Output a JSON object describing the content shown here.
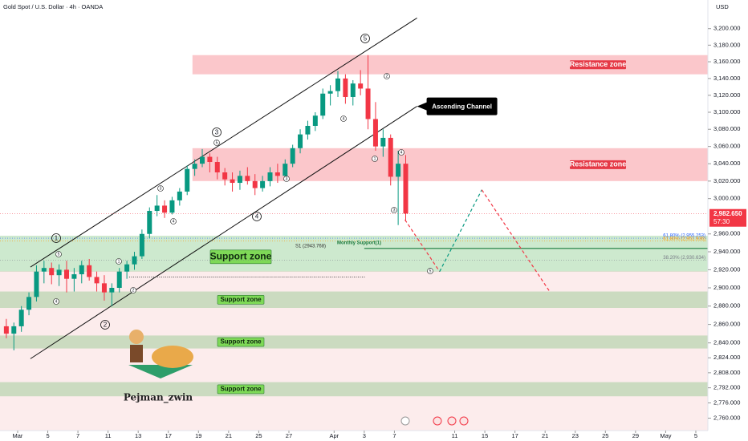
{
  "chart_data": {
    "type": "candlestick",
    "title": "Gold Spot / U.S. Dollar · 4h · OANDA",
    "currency": "USD",
    "log_scale": true,
    "xlim": [
      -1.17,
      45.8
    ],
    "ylim": [
      2747,
      3235
    ],
    "xticks": [
      {
        "value": 0,
        "label": "Mar"
      },
      {
        "value": 2,
        "label": "5"
      },
      {
        "value": 4,
        "label": "7"
      },
      {
        "value": 6,
        "label": "11"
      },
      {
        "value": 8,
        "label": "13"
      },
      {
        "value": 10,
        "label": "17"
      },
      {
        "value": 12,
        "label": "19"
      },
      {
        "value": 14,
        "label": "21"
      },
      {
        "value": 16,
        "label": "25"
      },
      {
        "value": 18,
        "label": "27"
      },
      {
        "value": 21,
        "label": "Apr"
      },
      {
        "value": 23,
        "label": "3"
      },
      {
        "value": 25,
        "label": "7"
      },
      {
        "value": 29,
        "label": "11"
      },
      {
        "value": 31,
        "label": "15"
      },
      {
        "value": 33,
        "label": "17"
      },
      {
        "value": 35,
        "label": "21"
      },
      {
        "value": 37,
        "label": "23"
      },
      {
        "value": 39,
        "label": "25"
      },
      {
        "value": 41,
        "label": "29"
      },
      {
        "value": 43,
        "label": "May"
      },
      {
        "value": 45,
        "label": "5"
      }
    ],
    "yticks": [
      {
        "value": 3200,
        "label": "3,200.000"
      },
      {
        "value": 3180,
        "label": "3,180.000"
      },
      {
        "value": 3160,
        "label": "3,160.000"
      },
      {
        "value": 3140,
        "label": "3,140.000"
      },
      {
        "value": 3120,
        "label": "3,120.000"
      },
      {
        "value": 3100,
        "label": "3,100.000"
      },
      {
        "value": 3080,
        "label": "3,080.000"
      },
      {
        "value": 3060,
        "label": "3,060.000"
      },
      {
        "value": 3040,
        "label": "3,040.000"
      },
      {
        "value": 3020,
        "label": "3,020.000"
      },
      {
        "value": 3000,
        "label": "3,000.000"
      },
      {
        "value": 2960,
        "label": "2,960.000"
      },
      {
        "value": 2940,
        "label": "2,940.000"
      },
      {
        "value": 2920,
        "label": "2,920.000"
      },
      {
        "value": 2900,
        "label": "2,900.000"
      },
      {
        "value": 2880,
        "label": "2,880.000"
      },
      {
        "value": 2860,
        "label": "2,860.000"
      },
      {
        "value": 2840,
        "label": "2,840.000"
      },
      {
        "value": 2824,
        "label": "2,824.000"
      },
      {
        "value": 2808,
        "label": "2,808.000"
      },
      {
        "value": 2792,
        "label": "2,792.000"
      },
      {
        "value": 2776,
        "label": "2,776.000"
      },
      {
        "value": 2760,
        "label": "2,760.000"
      }
    ],
    "up_color": "#089981",
    "down_color": "#f23645",
    "candles": {
      "x": [
        -0.75,
        -0.25,
        0.25,
        0.75,
        1.25,
        1.75,
        2.25,
        2.75,
        3.25,
        3.75,
        4.25,
        4.75,
        5.25,
        5.75,
        6.25,
        6.75,
        7.25,
        7.75,
        8.25,
        8.75,
        9.25,
        9.75,
        10.25,
        10.75,
        11.25,
        11.75,
        12.25,
        12.75,
        13.25,
        13.75,
        14.25,
        14.75,
        15.25,
        15.75,
        16.25,
        16.75,
        17.25,
        17.75,
        18.25,
        18.75,
        19.25,
        19.75,
        20.25,
        20.75,
        21.25,
        21.75,
        22.25,
        22.75,
        23.25,
        23.75,
        24.25,
        24.75,
        25.25,
        25.75
      ],
      "open": [
        2858,
        2850,
        2858,
        2876,
        2890,
        2918,
        2922,
        2914,
        2920,
        2910,
        2915,
        2925,
        2912,
        2905,
        2895,
        2900,
        2918,
        2926,
        2935,
        2960,
        2986,
        2992,
        2984,
        2998,
        3008,
        3034,
        3040,
        3048,
        3042,
        3030,
        3022,
        3018,
        3026,
        3020,
        3012,
        3020,
        3030,
        3026,
        3040,
        3058,
        3074,
        3084,
        3096,
        3122,
        3125,
        3140,
        3118,
        3134,
        3128,
        3092,
        3060,
        3070,
        3025,
        3040
      ],
      "high": [
        2866,
        2862,
        2880,
        2895,
        2925,
        2930,
        2928,
        2926,
        2930,
        2922,
        2930,
        2932,
        2918,
        2914,
        2905,
        2922,
        2930,
        2940,
        2965,
        2990,
        3004,
        2998,
        3002,
        3012,
        3038,
        3045,
        3057,
        3052,
        3048,
        3035,
        3030,
        3032,
        3036,
        3028,
        3026,
        3036,
        3040,
        3045,
        3062,
        3080,
        3090,
        3100,
        3128,
        3132,
        3149,
        3145,
        3138,
        3150,
        3168,
        3112,
        3080,
        3074,
        3055,
        3050
      ],
      "low": [
        2845,
        2832,
        2852,
        2870,
        2885,
        2905,
        2904,
        2902,
        2895,
        2896,
        2905,
        2908,
        2896,
        2886,
        2880,
        2895,
        2910,
        2920,
        2932,
        2955,
        2980,
        2978,
        2982,
        2992,
        3004,
        3026,
        3036,
        3030,
        3022,
        3015,
        3008,
        3010,
        3016,
        3004,
        3008,
        3014,
        3018,
        3022,
        3036,
        3052,
        3068,
        3078,
        3092,
        3108,
        3118,
        3110,
        3108,
        3120,
        3080,
        3055,
        3048,
        3015,
        2970,
        2975
      ],
      "close": [
        2850,
        2858,
        2876,
        2890,
        2918,
        2922,
        2914,
        2920,
        2910,
        2915,
        2925,
        2912,
        2905,
        2895,
        2900,
        2918,
        2926,
        2935,
        2960,
        2986,
        2992,
        2984,
        2998,
        3008,
        3034,
        3040,
        3048,
        3042,
        3030,
        3022,
        3018,
        3026,
        3020,
        3012,
        3020,
        3030,
        3026,
        3040,
        3058,
        3074,
        3084,
        3096,
        3122,
        3125,
        3140,
        3118,
        3134,
        3128,
        3092,
        3060,
        3070,
        3025,
        3040,
        2983
      ]
    },
    "zones": [
      {
        "label": "Resistance zone",
        "kind": "resistance",
        "x0": 11.6,
        "ymin": 3145,
        "ymax": 3168
      },
      {
        "label": "Resistance zone",
        "kind": "resistance",
        "x0": 11.6,
        "ymin": 3020,
        "ymax": 3058
      },
      {
        "label": "Support zone",
        "kind": "support",
        "ymin": 2918,
        "ymax": 2958
      },
      {
        "label": "Support zone",
        "kind": "support",
        "ymin": 2878,
        "ymax": 2896
      },
      {
        "label": "Support zone",
        "kind": "support",
        "ymin": 2834,
        "ymax": 2848
      },
      {
        "label": "Support zone",
        "kind": "support",
        "ymin": 2783,
        "ymax": 2798
      }
    ],
    "channel": {
      "label": "Ascending Channel",
      "x": [
        0.85,
        26.5
      ],
      "upper": [
        2923,
        3213
      ],
      "lower": [
        2823,
        3107
      ]
    },
    "projection": {
      "x": [
        25.7,
        28.0,
        30.8,
        35.3
      ],
      "y": [
        2976,
        2918,
        3010,
        2896
      ],
      "colors": [
        "#f23645",
        "#089981",
        "#f23645"
      ]
    },
    "pivot": {
      "label": "S1 (2943.768)",
      "name": "Monthly Support(1)",
      "value": 2943.768,
      "x0": 23.0
    },
    "fib_levels": [
      {
        "label": "61.80% (2,955.253)",
        "value": 2955.253,
        "color": "#2962ff"
      },
      {
        "label": "61.80% (2,951.936)",
        "value": 2951.936,
        "color": "#ff9800"
      },
      {
        "label": "38.20% (2,930.634)",
        "value": 2930.634,
        "color": "#787b86"
      }
    ],
    "dotted_line": {
      "x": [
        7.4,
        23.1
      ],
      "y": 2912
    },
    "last_price": {
      "value": 2982.65,
      "label": "2,982.650",
      "countdown": "57:30"
    },
    "waves_major": [
      "1",
      "2",
      "3",
      "4",
      "5"
    ],
    "waves_minor": [
      "3",
      "4",
      "5",
      "4",
      "1",
      "2",
      "3",
      "4",
      "5",
      "1",
      "2",
      "5",
      "4",
      "3"
    ],
    "author": "Pejman_zwin"
  }
}
